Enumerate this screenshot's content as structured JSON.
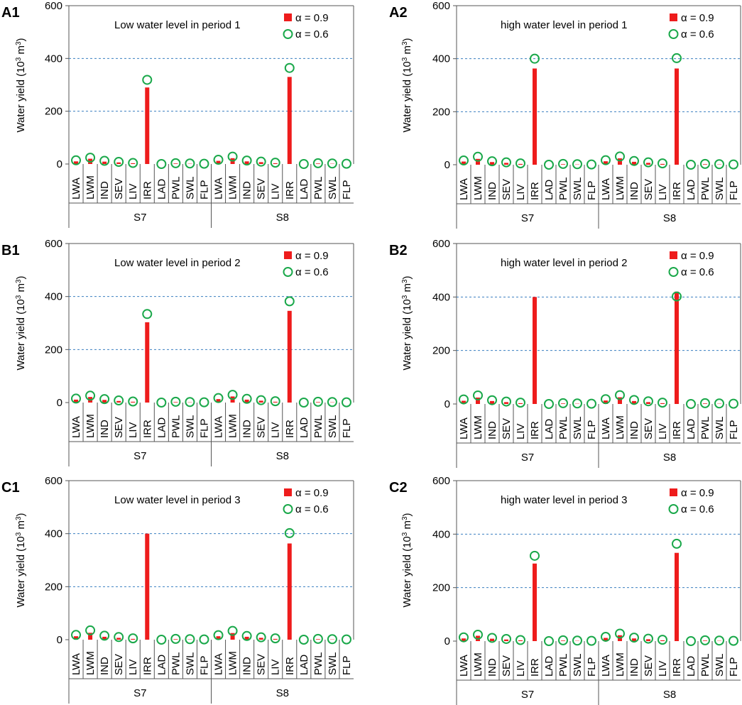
{
  "figure": {
    "ylabel_main": "Water yield (10",
    "ylabel_sup": "3",
    "ylabel_unit": " m",
    "ylabel_end": ")",
    "legend": {
      "alpha_09": "α = 0.9",
      "alpha_06": "α = 0.6"
    },
    "colors": {
      "bar": "#ee1c1c",
      "circle": "#1aa84a",
      "grid": "#3a7fc0",
      "axis": "#555555"
    },
    "categories": [
      "LWA",
      "LWM",
      "IND",
      "SEV",
      "LIV",
      "IRR",
      "LAD",
      "PWL",
      "SWL",
      "FLP"
    ],
    "groups": [
      "S7",
      "S8"
    ]
  },
  "chart_data": [
    {
      "panel": "A1",
      "type": "bar",
      "title": "Low water level in  period 1",
      "ylabel": "Water yield (10³ m³)",
      "ylim": [
        0,
        600
      ],
      "yticks": [
        0,
        200,
        400,
        600
      ],
      "gridlines": [
        200,
        400
      ],
      "categories": [
        "LWA",
        "LWM",
        "IND",
        "SEV",
        "LIV",
        "IRR",
        "LAD",
        "PWL",
        "SWL",
        "FLP"
      ],
      "groups": [
        "S7",
        "S8"
      ],
      "series": [
        {
          "name": "α = 0.9",
          "S7": [
            10,
            20,
            9,
            6,
            3,
            290,
            0,
            2,
            1,
            0
          ],
          "S8": [
            12,
            22,
            10,
            7,
            3,
            330,
            0,
            2,
            1,
            0
          ]
        },
        {
          "name": "α = 0.6",
          "S7": [
            14,
            24,
            12,
            8,
            4,
            319,
            0,
            3,
            2,
            1
          ],
          "S8": [
            16,
            28,
            13,
            9,
            5,
            364,
            0,
            3,
            2,
            1
          ]
        }
      ]
    },
    {
      "panel": "A2",
      "type": "bar",
      "title": "high water level in period 1",
      "ylabel": "Water yield (10³ m³)",
      "ylim": [
        0,
        600
      ],
      "yticks": [
        0,
        200,
        400,
        600
      ],
      "gridlines": [
        200,
        400
      ],
      "categories": [
        "LWA",
        "LWM",
        "IND",
        "SEV",
        "LIV",
        "IRR",
        "LAD",
        "PWL",
        "SWL",
        "FLP"
      ],
      "groups": [
        "S7",
        "S8"
      ],
      "series": [
        {
          "name": "α = 0.9",
          "S7": [
            12,
            22,
            10,
            7,
            3,
            363,
            0,
            2,
            1,
            0
          ],
          "S8": [
            13,
            24,
            11,
            7,
            3,
            363,
            0,
            2,
            1,
            0
          ]
        },
        {
          "name": "α = 0.6",
          "S7": [
            16,
            30,
            13,
            9,
            5,
            400,
            0,
            3,
            2,
            1
          ],
          "S8": [
            17,
            31,
            14,
            9,
            5,
            402,
            0,
            3,
            2,
            1
          ]
        }
      ]
    },
    {
      "panel": "B1",
      "type": "bar",
      "title": "Low water level in period 2",
      "ylabel": "Water yield (10³ m³)",
      "ylim": [
        0,
        600
      ],
      "yticks": [
        0,
        200,
        400,
        600
      ],
      "gridlines": [
        200,
        400
      ],
      "categories": [
        "LWA",
        "LWM",
        "IND",
        "SEV",
        "LIV",
        "IRR",
        "LAD",
        "PWL",
        "SWL",
        "FLP"
      ],
      "groups": [
        "S7",
        "S8"
      ],
      "series": [
        {
          "name": "α = 0.9",
          "S7": [
            11,
            21,
            10,
            6,
            3,
            303,
            0,
            2,
            1,
            0
          ],
          "S8": [
            13,
            23,
            11,
            7,
            3,
            346,
            0,
            2,
            1,
            0
          ]
        },
        {
          "name": "α = 0.6",
          "S7": [
            15,
            26,
            13,
            8,
            4,
            334,
            0,
            3,
            2,
            1
          ],
          "S8": [
            17,
            29,
            14,
            9,
            5,
            382,
            0,
            3,
            2,
            1
          ]
        }
      ]
    },
    {
      "panel": "B2",
      "type": "bar",
      "title": "high water level in period 2",
      "ylabel": "Water yield (10³ m³)",
      "ylim": [
        0,
        600
      ],
      "yticks": [
        0,
        200,
        400,
        600
      ],
      "gridlines": [
        200,
        400
      ],
      "categories": [
        "LWA",
        "LWM",
        "IND",
        "SEV",
        "LIV",
        "IRR",
        "LAD",
        "PWL",
        "SWL",
        "FLP"
      ],
      "groups": [
        "S7",
        "S8"
      ],
      "series": [
        {
          "name": "α = 0.9",
          "S7": [
            12,
            24,
            11,
            7,
            3,
            400,
            0,
            2,
            1,
            0
          ],
          "S8": [
            13,
            25,
            11,
            7,
            3,
            420,
            0,
            2,
            1,
            0
          ]
        },
        {
          "name": "α = 0.6",
          "S7": [
            17,
            32,
            14,
            9,
            5,
            null,
            0,
            3,
            2,
            1
          ],
          "S8": [
            18,
            33,
            15,
            10,
            5,
            402,
            0,
            3,
            2,
            1
          ]
        }
      ]
    },
    {
      "panel": "C1",
      "type": "bar",
      "title": "Low water level in period 3",
      "ylabel": "Water yield (10³ m³)",
      "ylim": [
        0,
        600
      ],
      "yticks": [
        0,
        200,
        400,
        600
      ],
      "gridlines": [
        200,
        400
      ],
      "categories": [
        "LWA",
        "LWM",
        "IND",
        "SEV",
        "LIV",
        "IRR",
        "LAD",
        "PWL",
        "SWL",
        "FLP"
      ],
      "groups": [
        "S7",
        "S8"
      ],
      "series": [
        {
          "name": "α = 0.9",
          "S7": [
            13,
            26,
            11,
            7,
            3,
            400,
            0,
            2,
            1,
            0
          ],
          "S8": [
            13,
            25,
            11,
            7,
            3,
            363,
            0,
            2,
            1,
            0
          ]
        },
        {
          "name": "α = 0.6",
          "S7": [
            18,
            35,
            15,
            10,
            5,
            null,
            0,
            3,
            2,
            1
          ],
          "S8": [
            17,
            33,
            14,
            9,
            5,
            402,
            0,
            3,
            2,
            1
          ]
        }
      ]
    },
    {
      "panel": "C2",
      "type": "bar",
      "title": "high water level in period 3",
      "ylabel": "Water yield (10³ m³)",
      "ylim": [
        0,
        600
      ],
      "yticks": [
        0,
        200,
        400,
        600
      ],
      "gridlines": [
        200,
        400
      ],
      "categories": [
        "LWA",
        "LWM",
        "IND",
        "SEV",
        "LIV",
        "IRR",
        "LAD",
        "PWL",
        "SWL",
        "FLP"
      ],
      "groups": [
        "S7",
        "S8"
      ],
      "series": [
        {
          "name": "α = 0.9",
          "S7": [
            10,
            20,
            9,
            6,
            3,
            290,
            0,
            2,
            1,
            0
          ],
          "S8": [
            12,
            22,
            10,
            7,
            3,
            330,
            0,
            2,
            1,
            0
          ]
        },
        {
          "name": "α = 0.6",
          "S7": [
            14,
            24,
            12,
            8,
            4,
            319,
            0,
            3,
            2,
            1
          ],
          "S8": [
            16,
            28,
            13,
            9,
            5,
            364,
            0,
            3,
            2,
            1
          ]
        }
      ]
    }
  ]
}
